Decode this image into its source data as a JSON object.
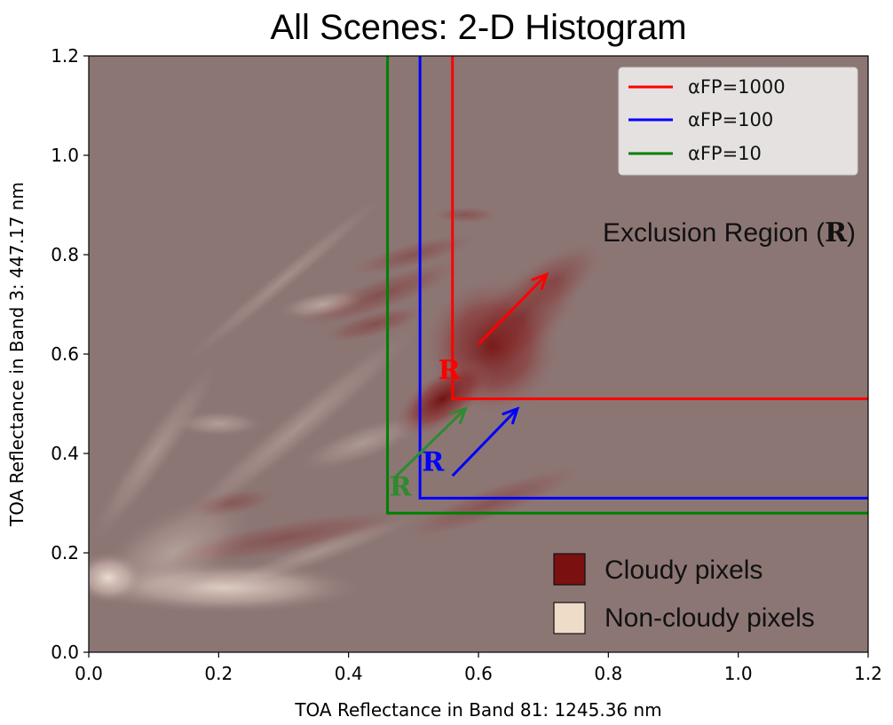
{
  "chart_data": {
    "type": "heatmap",
    "title": "All Scenes: 2-D Histogram",
    "xlabel": "TOA Reflectance in Band 81: 1245.36 nm",
    "ylabel": "TOA Reflectance in Band 3: 447.17 nm",
    "xlim": [
      0.0,
      1.2
    ],
    "ylim": [
      0.0,
      1.2
    ],
    "grid": false,
    "xticks": [
      0.0,
      0.2,
      0.4,
      0.6,
      0.8,
      1.0,
      1.2
    ],
    "yticks": [
      0.0,
      0.2,
      0.4,
      0.6,
      0.8,
      1.0,
      1.2
    ],
    "xtick_labels": [
      "0.0",
      "0.2",
      "0.4",
      "0.6",
      "0.8",
      "1.0",
      "1.2"
    ],
    "ytick_labels": [
      "0.0",
      "0.2",
      "0.4",
      "0.6",
      "0.8",
      "1.0",
      "1.2"
    ],
    "background_color": "#8c7674",
    "legend_placement": "top-right",
    "series": [
      {
        "name": "αFP=1000",
        "color": "#ff0000",
        "x_threshold": 0.56,
        "y_threshold": 0.51
      },
      {
        "name": "αFP=100",
        "color": "#0000ff",
        "x_threshold": 0.51,
        "y_threshold": 0.31
      },
      {
        "name": "αFP=10",
        "color": "#008000",
        "x_threshold": 0.46,
        "y_threshold": 0.28
      }
    ],
    "density_legend": [
      {
        "label": "Cloudy pixels",
        "color": "#7a1010"
      },
      {
        "label": "Non-cloudy pixels",
        "color": "#efdcc8"
      }
    ],
    "annotations": {
      "exclusion_label": "Exclusion Region (",
      "exclusion_symbol": "R",
      "exclusion_close": ")",
      "region_labels": [
        {
          "text": "R",
          "color": "#ff0000",
          "x": 0.555,
          "y": 0.55
        },
        {
          "text": "R",
          "color": "#0000ff",
          "x": 0.53,
          "y": 0.365
        },
        {
          "text": "R",
          "color": "#2e8b2e",
          "x": 0.48,
          "y": 0.315
        }
      ],
      "arrows": [
        {
          "color": "#ff0000",
          "x1": 0.6,
          "y1": 0.62,
          "x2": 0.705,
          "y2": 0.76
        },
        {
          "color": "#0000ff",
          "x1": 0.56,
          "y1": 0.355,
          "x2": 0.66,
          "y2": 0.49
        },
        {
          "color": "#2e8b2e",
          "x1": 0.47,
          "y1": 0.35,
          "x2": 0.58,
          "y2": 0.49
        }
      ]
    },
    "density_blobs": [
      {
        "kind": "cloudy",
        "x": 0.62,
        "y": 0.615,
        "sx": 0.06,
        "sy": 0.08,
        "rot": -40,
        "a": 0.85
      },
      {
        "kind": "cloudy",
        "x": 0.545,
        "y": 0.51,
        "sx": 0.05,
        "sy": 0.03,
        "rot": -35,
        "a": 0.9
      },
      {
        "kind": "cloudy",
        "x": 0.67,
        "y": 0.68,
        "sx": 0.07,
        "sy": 0.045,
        "rot": -45,
        "a": 0.45
      },
      {
        "kind": "cloudy",
        "x": 0.72,
        "y": 0.75,
        "sx": 0.05,
        "sy": 0.03,
        "rot": -35,
        "a": 0.3
      },
      {
        "kind": "cloudy",
        "x": 0.45,
        "y": 0.72,
        "sx": 0.08,
        "sy": 0.02,
        "rot": -20,
        "a": 0.35
      },
      {
        "kind": "cloudy",
        "x": 0.5,
        "y": 0.8,
        "sx": 0.06,
        "sy": 0.015,
        "rot": -15,
        "a": 0.3
      },
      {
        "kind": "cloudy",
        "x": 0.44,
        "y": 0.66,
        "sx": 0.05,
        "sy": 0.015,
        "rot": -15,
        "a": 0.35
      },
      {
        "kind": "cloudy",
        "x": 0.58,
        "y": 0.88,
        "sx": 0.03,
        "sy": 0.01,
        "rot": 0,
        "a": 0.3
      },
      {
        "kind": "cloudy",
        "x": 0.62,
        "y": 0.3,
        "sx": 0.09,
        "sy": 0.02,
        "rot": -20,
        "a": 0.3
      },
      {
        "kind": "cloudy",
        "x": 0.3,
        "y": 0.23,
        "sx": 0.12,
        "sy": 0.02,
        "rot": -10,
        "a": 0.3
      },
      {
        "kind": "cloudy",
        "x": 0.22,
        "y": 0.3,
        "sx": 0.04,
        "sy": 0.015,
        "rot": -10,
        "a": 0.3
      },
      {
        "kind": "clear",
        "x": 0.21,
        "y": 0.13,
        "sx": 0.12,
        "sy": 0.03,
        "rot": 0,
        "a": 0.75
      },
      {
        "kind": "clear",
        "x": 0.03,
        "y": 0.15,
        "sx": 0.03,
        "sy": 0.03,
        "rot": 0,
        "a": 0.9
      },
      {
        "kind": "clear",
        "x": 0.13,
        "y": 0.2,
        "sx": 0.08,
        "sy": 0.05,
        "rot": -30,
        "a": 0.35
      },
      {
        "kind": "clear",
        "x": 0.1,
        "y": 0.4,
        "sx": 0.1,
        "sy": 0.02,
        "rot": -55,
        "a": 0.25
      },
      {
        "kind": "clear",
        "x": 0.32,
        "y": 0.45,
        "sx": 0.15,
        "sy": 0.02,
        "rot": -40,
        "a": 0.25
      },
      {
        "kind": "clear",
        "x": 0.3,
        "y": 0.75,
        "sx": 0.12,
        "sy": 0.012,
        "rot": -40,
        "a": 0.22
      },
      {
        "kind": "clear",
        "x": 0.36,
        "y": 0.7,
        "sx": 0.04,
        "sy": 0.015,
        "rot": -10,
        "a": 0.4
      },
      {
        "kind": "clear",
        "x": 0.2,
        "y": 0.46,
        "sx": 0.04,
        "sy": 0.015,
        "rot": 0,
        "a": 0.35
      },
      {
        "kind": "clear",
        "x": 0.42,
        "y": 0.42,
        "sx": 0.06,
        "sy": 0.02,
        "rot": -20,
        "a": 0.3
      },
      {
        "kind": "clear",
        "x": 0.35,
        "y": 0.2,
        "sx": 0.1,
        "sy": 0.015,
        "rot": -20,
        "a": 0.25
      }
    ]
  }
}
